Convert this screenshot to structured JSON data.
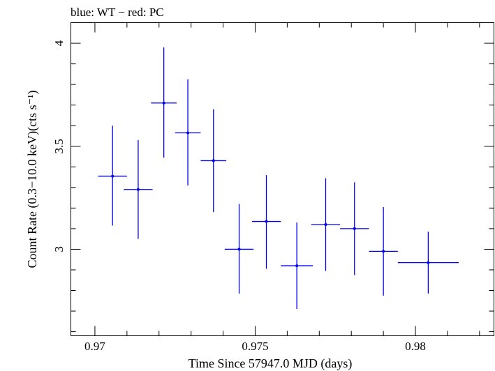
{
  "chart_data": {
    "type": "scatter",
    "title": "blue: WT − red: PC",
    "xlabel": "Time Since 57947.0 MJD (days)",
    "ylabel": "Count Rate (0.3−10.0 keV)(cts s⁻¹)",
    "xlim": [
      0.96925,
      0.98245
    ],
    "ylim": [
      2.58,
      4.1
    ],
    "xticks": [
      0.97,
      0.975,
      0.98
    ],
    "xtick_labels": [
      "0.97",
      "0.975",
      "0.98"
    ],
    "yticks": [
      3,
      3.5,
      4
    ],
    "ytick_labels": [
      "3",
      "3.5",
      "4"
    ],
    "series": [
      {
        "name": "WT",
        "color": "#0000ee",
        "points": [
          {
            "x": 0.97055,
            "xerr": 0.00045,
            "y": 3.355,
            "yerr_low": 0.24,
            "yerr_high": 0.245
          },
          {
            "x": 0.97135,
            "xerr": 0.00045,
            "y": 3.29,
            "yerr_low": 0.24,
            "yerr_high": 0.24
          },
          {
            "x": 0.97215,
            "xerr": 0.0004,
            "y": 3.71,
            "yerr_low": 0.265,
            "yerr_high": 0.27
          },
          {
            "x": 0.9729,
            "xerr": 0.0004,
            "y": 3.565,
            "yerr_low": 0.255,
            "yerr_high": 0.26
          },
          {
            "x": 0.9737,
            "xerr": 0.0004,
            "y": 3.43,
            "yerr_low": 0.25,
            "yerr_high": 0.25
          },
          {
            "x": 0.9745,
            "xerr": 0.00045,
            "y": 3.0,
            "yerr_low": 0.215,
            "yerr_high": 0.22
          },
          {
            "x": 0.97535,
            "xerr": 0.00045,
            "y": 3.135,
            "yerr_low": 0.23,
            "yerr_high": 0.225
          },
          {
            "x": 0.9763,
            "xerr": 0.0005,
            "y": 2.92,
            "yerr_low": 0.21,
            "yerr_high": 0.21
          },
          {
            "x": 0.9772,
            "xerr": 0.00045,
            "y": 3.12,
            "yerr_low": 0.225,
            "yerr_high": 0.225
          },
          {
            "x": 0.9781,
            "xerr": 0.00045,
            "y": 3.1,
            "yerr_low": 0.225,
            "yerr_high": 0.225
          },
          {
            "x": 0.979,
            "xerr": 0.00045,
            "y": 2.99,
            "yerr_low": 0.215,
            "yerr_high": 0.215
          },
          {
            "x": 0.9804,
            "xerr": 0.00095,
            "y": 2.935,
            "yerr_low": 0.15,
            "yerr_high": 0.15
          }
        ]
      }
    ]
  }
}
